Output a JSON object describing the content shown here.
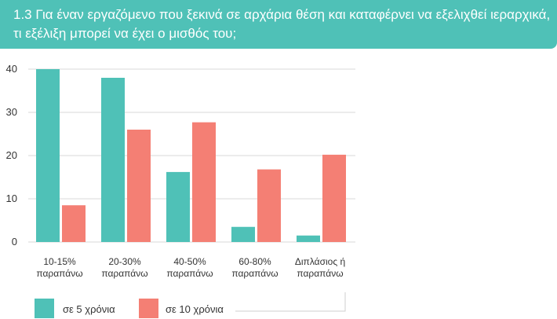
{
  "header": {
    "title": "1.3 Για έναν εργαζόμενο που ξεκινά σε αρχάρια θέση και καταφέρνει να εξελιχθεί ιεραρχικά, τι εξέλιξη μπορεί να έχει ο μισθός του;"
  },
  "colors": {
    "banner": "#4fc1b7",
    "series_1": "#4fc1b7",
    "series_2": "#f47f74"
  },
  "chart_data": {
    "type": "bar",
    "title": "",
    "xlabel": "",
    "ylabel": "",
    "categories": [
      [
        "10-15%",
        "παραπάνω"
      ],
      [
        "20-30%",
        "παραπάνω"
      ],
      [
        "40-50%",
        "παραπάνω"
      ],
      [
        "60-80%",
        "παραπάνω"
      ],
      [
        "Διπλάσιος ή",
        "παραπάνω"
      ]
    ],
    "series": [
      {
        "name": "σε 5 χρόνια",
        "values": [
          40,
          38,
          16.2,
          3.5,
          1.5
        ]
      },
      {
        "name": "σε 10 χρόνια",
        "values": [
          8.5,
          26,
          27.7,
          16.8,
          20.2
        ]
      }
    ],
    "ylim": [
      0,
      40
    ],
    "yticks": [
      0,
      10,
      20,
      30,
      40
    ],
    "grid": true,
    "legend_position": "bottom-left"
  }
}
